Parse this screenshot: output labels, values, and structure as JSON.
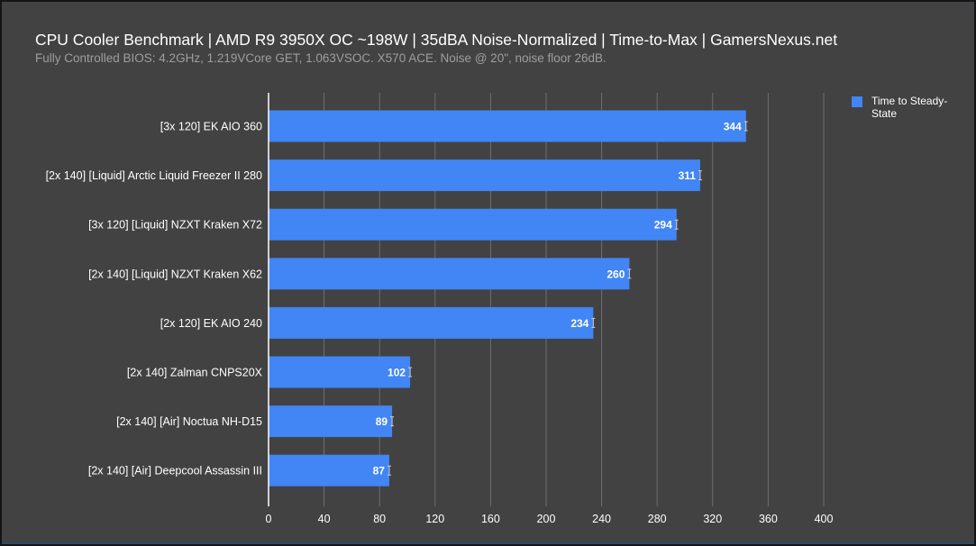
{
  "chart_data": {
    "type": "bar",
    "orientation": "horizontal",
    "title": "CPU Cooler Benchmark | AMD R9 3950X OC ~198W | 35dBA Noise-Normalized | Time-to-Max | GamersNexus.net",
    "subtitle": "Fully Controlled BIOS: 4.2GHz, 1.219VCore GET, 1.063VSOC. X570 ACE. Noise @ 20\", noise floor 26dB.",
    "categories": [
      "[3x 120] EK AIO 360",
      "[2x 140] [Liquid] Arctic Liquid Freezer II 280",
      "[3x 120] [Liquid] NZXT Kraken X72",
      "[2x 140] [Liquid] NZXT Kraken X62",
      "[2x 120] EK AIO 240",
      "[2x 140] Zalman CNPS20X",
      "[2x 140] [Air] Noctua NH-D15",
      "[2x 140] [Air] Deepcool Assassin III"
    ],
    "series": [
      {
        "name": "Time to Steady-State",
        "color": "#4285f4",
        "values": [
          344,
          311,
          294,
          260,
          234,
          102,
          89,
          87
        ],
        "error_bars": true
      }
    ],
    "xlim": [
      0,
      400
    ],
    "x_ticks": [
      0,
      40,
      80,
      120,
      160,
      200,
      240,
      280,
      320,
      360,
      400
    ],
    "xlabel": "",
    "ylabel": "",
    "grid": "vertical",
    "legend_position": "top-right",
    "background": "#424242"
  }
}
